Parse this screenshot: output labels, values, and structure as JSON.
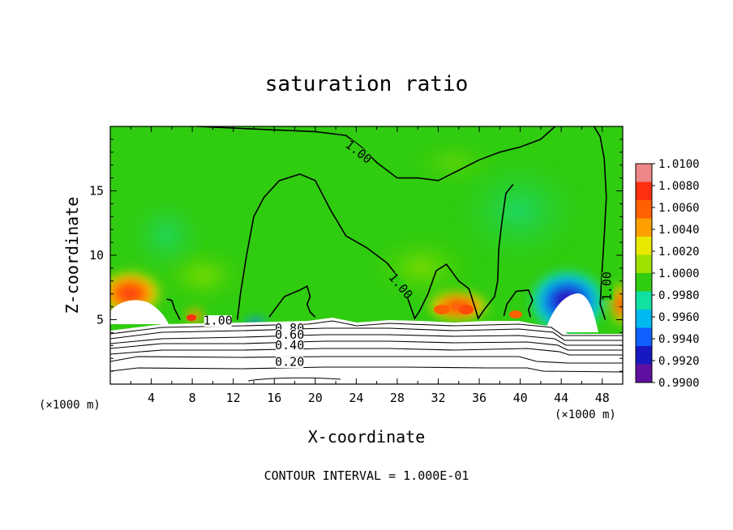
{
  "chart_data": {
    "type": "heatmap",
    "title": "saturation ratio",
    "xlabel": "X-coordinate",
    "ylabel": "Z-coordinate",
    "x_unit": "(×1000 m)",
    "x_unit_right": "(×1000 m)",
    "xlim": [
      0,
      50
    ],
    "ylim": [
      0,
      20
    ],
    "xticks": [
      4,
      8,
      12,
      16,
      20,
      24,
      28,
      32,
      36,
      40,
      44,
      48
    ],
    "yticks": [
      5,
      10,
      15
    ],
    "footer": "CONTOUR INTERVAL = 1.000E-01",
    "colorbar": {
      "min": 0.99,
      "max": 1.01,
      "ticks": [
        "1.0100",
        "1.0080",
        "1.0060",
        "1.0040",
        "1.0020",
        "1.0000",
        "0.9980",
        "0.9960",
        "0.9940",
        "0.9920",
        "0.9900"
      ],
      "colors": [
        "#ee8888",
        "#ff3010",
        "#ff6000",
        "#ffa000",
        "#e8e800",
        "#a0e000",
        "#30cc10",
        "#10e0a0",
        "#00b8f0",
        "#1060ff",
        "#1818c0",
        "#6010a0"
      ]
    },
    "contour_labels": [
      {
        "text": "1.00",
        "x": 24.2,
        "z": 18.0
      },
      {
        "text": "1.00",
        "x": 28.3,
        "z": 7.6
      },
      {
        "text": "1.00",
        "x": 48.5,
        "z": 7.6
      },
      {
        "text": "1.00",
        "x": 10.5,
        "z": 4.9
      },
      {
        "text": "0.80",
        "x": 17.5,
        "z": 4.3
      },
      {
        "text": "0.60",
        "x": 17.5,
        "z": 3.8
      },
      {
        "text": "0.40",
        "x": 17.5,
        "z": 3.0
      },
      {
        "text": "0.20",
        "x": 17.5,
        "z": 1.7
      }
    ],
    "contour_1_00": [
      [
        [
          8.5,
          20
        ],
        [
          14,
          19.8
        ],
        [
          20,
          19.6
        ],
        [
          23,
          19.3
        ],
        [
          24.5,
          18.4
        ],
        [
          26,
          17.2
        ],
        [
          28,
          16.0
        ],
        [
          30,
          16.0
        ],
        [
          32,
          15.8
        ],
        [
          34,
          16.6
        ],
        [
          36,
          17.4
        ],
        [
          38,
          18.0
        ],
        [
          40,
          18.4
        ],
        [
          42,
          19.0
        ],
        [
          43.4,
          20
        ]
      ],
      [
        [
          12.4,
          5
        ],
        [
          12.7,
          7
        ],
        [
          13.3,
          10
        ],
        [
          14,
          13
        ],
        [
          15,
          14.5
        ],
        [
          16.5,
          15.8
        ],
        [
          18.5,
          16.3
        ],
        [
          20,
          15.8
        ],
        [
          21.5,
          13.5
        ],
        [
          23,
          11.5
        ],
        [
          25,
          10.6
        ],
        [
          27,
          9.4
        ],
        [
          28.4,
          8
        ],
        [
          29,
          6.7
        ],
        [
          29.4,
          5.8
        ],
        [
          29.7,
          5.1
        ],
        [
          30.2,
          5.7
        ],
        [
          31,
          7
        ],
        [
          31.8,
          8.8
        ],
        [
          32.8,
          9.3
        ],
        [
          34,
          8
        ],
        [
          35,
          7.4
        ],
        [
          35.6,
          5.9
        ],
        [
          35.9,
          5.1
        ],
        [
          36.5,
          5.8
        ],
        [
          37.5,
          6.8
        ],
        [
          37.8,
          8
        ],
        [
          37.9,
          10.5
        ],
        [
          38.2,
          12.5
        ],
        [
          38.6,
          14.8
        ],
        [
          39.3,
          15.5
        ]
      ],
      [
        [
          5.5,
          6.6
        ],
        [
          6,
          6.5
        ],
        [
          6.3,
          5.8
        ],
        [
          6.8,
          5.0
        ]
      ],
      [
        [
          15.5,
          5.2
        ],
        [
          17,
          6.8
        ],
        [
          18.5,
          7.3
        ],
        [
          19.2,
          7.6
        ],
        [
          19.5,
          6.8
        ],
        [
          19.2,
          6.2
        ],
        [
          19.5,
          5.6
        ],
        [
          20,
          5.2
        ]
      ],
      [
        [
          38.4,
          5.3
        ],
        [
          38.7,
          6.2
        ],
        [
          39.6,
          7.2
        ],
        [
          40.8,
          7.3
        ],
        [
          41.2,
          6.5
        ],
        [
          40.8,
          5.8
        ],
        [
          41,
          5.2
        ]
      ],
      [
        [
          47.2,
          20
        ],
        [
          47.8,
          19.2
        ],
        [
          48.2,
          17.5
        ],
        [
          48.4,
          14.5
        ],
        [
          48.2,
          11.5
        ],
        [
          48.0,
          9.0
        ],
        [
          47.8,
          6.2
        ],
        [
          48.3,
          5.0
        ]
      ]
    ]
  }
}
